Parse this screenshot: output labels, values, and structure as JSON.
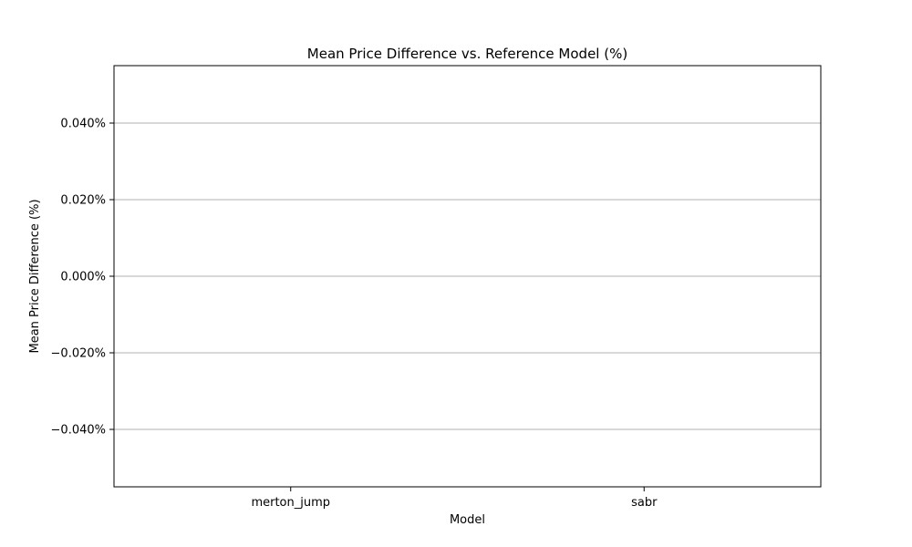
{
  "chart_data": {
    "type": "bar",
    "title": "Mean Price Difference vs. Reference Model (%)",
    "xlabel": "Model",
    "ylabel": "Mean Price Difference (%)",
    "categories": [
      "merton_jump",
      "sabr"
    ],
    "values": [
      0,
      0
    ],
    "ylim": [
      -0.055,
      0.055
    ],
    "y_ticks": [
      -0.04,
      -0.02,
      0.0,
      0.02,
      0.04
    ],
    "y_tick_labels": [
      "−0.040%",
      "−0.020%",
      "0.000%",
      "0.020%",
      "0.040%"
    ],
    "grid": "y-major",
    "legend": "none",
    "colors": {
      "grid": "#b0b0b0",
      "axes": "#000000",
      "bar": "#1f77b4"
    }
  }
}
